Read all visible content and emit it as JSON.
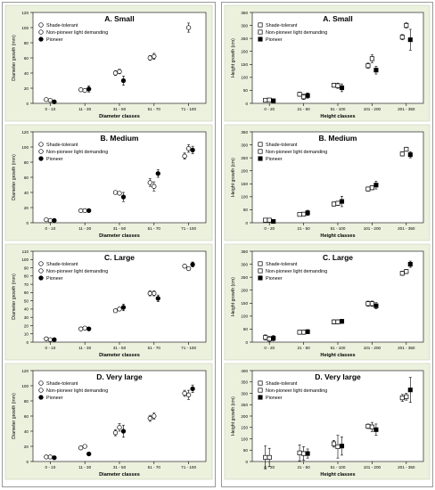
{
  "colors": {
    "panel_bg": "#ecf1de",
    "plot_bg": "#ffffff",
    "marker": "#000000",
    "hollow_fill": "#ffffff",
    "border": "#9a9a9a"
  },
  "chart_data": [
    {
      "type": "scatter",
      "title": "A. Small",
      "xlabel": "Diameter classes",
      "ylabel": "Diameter growth (mm)",
      "categories": [
        "0 - 10",
        "11 - 30",
        "31 - 50",
        "51 - 70",
        "71 - 100"
      ],
      "ylim": [
        0,
        120
      ],
      "yticks": [
        0,
        20,
        40,
        60,
        80,
        100,
        120
      ],
      "legend": "top-left",
      "grid": false,
      "series": [
        {
          "name": "Shade-tolerant",
          "marker": "circle-hollow",
          "values": [
            5,
            18,
            40,
            60,
            null
          ],
          "errors": [
            1,
            2,
            3,
            3,
            null
          ]
        },
        {
          "name": "Non-pioneer light demanding",
          "marker": "circle-hollow",
          "values": [
            4,
            17,
            42,
            62,
            100
          ],
          "errors": [
            1,
            2,
            3,
            4,
            6
          ]
        },
        {
          "name": "Pioneer",
          "marker": "circle-filled",
          "values": [
            2,
            19,
            30,
            null,
            null
          ],
          "errors": [
            1,
            4,
            6,
            null,
            null
          ]
        }
      ]
    },
    {
      "type": "scatter",
      "title": "B. Medium",
      "xlabel": "Diameter classes",
      "ylabel": "Diameter growth (mm)",
      "categories": [
        "0 - 10",
        "11 - 30",
        "31 - 50",
        "51 - 70",
        "71 - 100"
      ],
      "ylim": [
        0,
        120
      ],
      "yticks": [
        0,
        20,
        40,
        60,
        80,
        100,
        120
      ],
      "legend": "top-left",
      "grid": false,
      "series": [
        {
          "name": "Shade-tolerant",
          "marker": "circle-hollow",
          "values": [
            4,
            16,
            40,
            53,
            88
          ],
          "errors": [
            1,
            1,
            2,
            5,
            4
          ]
        },
        {
          "name": "Non-pioneer light demanding",
          "marker": "circle-hollow",
          "values": [
            3,
            16,
            39,
            48,
            98
          ],
          "errors": [
            1,
            1,
            2,
            6,
            5
          ]
        },
        {
          "name": "Pioneer",
          "marker": "circle-filled",
          "values": [
            3,
            16,
            34,
            65,
            96
          ],
          "errors": [
            1,
            1,
            6,
            5,
            5
          ]
        }
      ]
    },
    {
      "type": "scatter",
      "title": "C. Large",
      "xlabel": "Diameter classes",
      "ylabel": "Diameter growth (mm)",
      "categories": [
        "0 - 10",
        "11 - 30",
        "31 - 50",
        "51 - 70",
        "71 - 100"
      ],
      "ylim": [
        0,
        110
      ],
      "yticks": [
        0,
        10,
        20,
        30,
        40,
        50,
        60,
        70,
        80,
        90,
        100,
        110
      ],
      "legend": "top-left",
      "grid": false,
      "series": [
        {
          "name": "Shade-tolerant",
          "marker": "circle-hollow",
          "values": [
            4,
            16,
            38,
            59,
            92
          ],
          "errors": [
            1,
            1,
            2,
            3,
            2
          ]
        },
        {
          "name": "Non-pioneer light demanding",
          "marker": "circle-hollow",
          "values": [
            3,
            17,
            40,
            59,
            89
          ],
          "errors": [
            1,
            1,
            2,
            3,
            2
          ]
        },
        {
          "name": "Pioneer",
          "marker": "circle-filled",
          "values": [
            3,
            16,
            42,
            53,
            94
          ],
          "errors": [
            1,
            1,
            4,
            4,
            3
          ]
        }
      ]
    },
    {
      "type": "scatter",
      "title": "D. Very large",
      "xlabel": "Diameter classes",
      "ylabel": "Diameter growth (mm)",
      "categories": [
        "0 - 10",
        "11 - 30",
        "31 - 50",
        "51 - 70",
        "71 - 100"
      ],
      "ylim": [
        0,
        120
      ],
      "yticks": [
        0,
        20,
        40,
        60,
        80,
        100,
        120
      ],
      "legend": "top-left",
      "grid": false,
      "series": [
        {
          "name": "Shade-tolerant",
          "marker": "circle-hollow",
          "values": [
            6,
            18,
            38,
            57,
            90
          ],
          "errors": [
            1,
            1,
            4,
            4,
            4
          ]
        },
        {
          "name": "Non-pioneer light demanding",
          "marker": "circle-hollow",
          "values": [
            6,
            20,
            45,
            60,
            88
          ],
          "errors": [
            1,
            1,
            5,
            4,
            6
          ]
        },
        {
          "name": "Pioneer",
          "marker": "circle-filled",
          "values": [
            5,
            10,
            40,
            null,
            96
          ],
          "errors": [
            1,
            2,
            8,
            null,
            5
          ]
        }
      ]
    },
    {
      "type": "scatter",
      "title": "A. Small",
      "xlabel": "Height classes",
      "ylabel": "Height growth (cm)",
      "categories": [
        "0 - 20",
        "21 - 50",
        "51 - 100",
        "101 - 200",
        "201 - 350"
      ],
      "ylim": [
        0,
        350
      ],
      "yticks": [
        0,
        50,
        100,
        150,
        200,
        250,
        300,
        350
      ],
      "legend": "top-left",
      "grid": false,
      "series": [
        {
          "name": "Shade-tolerant",
          "marker": "square-hollow",
          "values": [
            12,
            35,
            70,
            145,
            255
          ],
          "errors": [
            4,
            8,
            8,
            10,
            10
          ]
        },
        {
          "name": "Non-pioneer light demanding",
          "marker": "square-hollow",
          "values": [
            13,
            25,
            68,
            172,
            300
          ],
          "errors": [
            4,
            10,
            10,
            15,
            10
          ]
        },
        {
          "name": "Pioneer",
          "marker": "square-filled",
          "values": [
            10,
            30,
            60,
            128,
            245
          ],
          "errors": [
            5,
            10,
            15,
            15,
            40
          ]
        }
      ]
    },
    {
      "type": "scatter",
      "title": "B. Medium",
      "xlabel": "Height classes",
      "ylabel": "Height growth (cm)",
      "categories": [
        "0 - 20",
        "21 - 50",
        "51 - 100",
        "101 - 200",
        "201 - 350"
      ],
      "ylim": [
        0,
        350
      ],
      "yticks": [
        0,
        50,
        100,
        150,
        200,
        250,
        300,
        350
      ],
      "legend": "top-left",
      "grid": false,
      "series": [
        {
          "name": "Shade-tolerant",
          "marker": "square-hollow",
          "values": [
            10,
            32,
            72,
            130,
            265
          ],
          "errors": [
            3,
            5,
            8,
            8,
            8
          ]
        },
        {
          "name": "Non-pioneer light demanding",
          "marker": "square-hollow",
          "values": [
            10,
            33,
            75,
            135,
            283
          ],
          "errors": [
            3,
            5,
            8,
            8,
            8
          ]
        },
        {
          "name": "Pioneer",
          "marker": "square-filled",
          "values": [
            5,
            38,
            82,
            145,
            262
          ],
          "errors": [
            3,
            10,
            20,
            15,
            12
          ]
        }
      ]
    },
    {
      "type": "scatter",
      "title": "C. Large",
      "xlabel": "Height classes",
      "ylabel": "Height growth (cm)",
      "categories": [
        "0 - 20",
        "21 - 50",
        "51 - 100",
        "101 - 200",
        "201 - 350"
      ],
      "ylim": [
        0,
        350
      ],
      "yticks": [
        0,
        50,
        100,
        150,
        200,
        250,
        300,
        350
      ],
      "legend": "top-left",
      "grid": false,
      "series": [
        {
          "name": "Shade-tolerant",
          "marker": "square-hollow",
          "values": [
            18,
            38,
            78,
            148,
            265
          ],
          "errors": [
            10,
            8,
            8,
            10,
            8
          ]
        },
        {
          "name": "Non-pioneer light demanding",
          "marker": "square-hollow",
          "values": [
            12,
            38,
            78,
            148,
            272
          ],
          "errors": [
            10,
            8,
            8,
            10,
            8
          ]
        },
        {
          "name": "Pioneer",
          "marker": "square-filled",
          "values": [
            15,
            40,
            80,
            140,
            300
          ],
          "errors": [
            10,
            8,
            8,
            12,
            12
          ]
        }
      ]
    },
    {
      "type": "scatter",
      "title": "D. Very large",
      "xlabel": "Height classes",
      "ylabel": "Height growth (cm)",
      "categories": [
        "0 - 20",
        "21 - 50",
        "51 - 100",
        "101 - 200",
        "201 - 350"
      ],
      "ylim": [
        0,
        400
      ],
      "yticks": [
        0,
        50,
        100,
        150,
        200,
        250,
        300,
        350,
        400
      ],
      "legend": "top-left",
      "grid": false,
      "series": [
        {
          "name": "Shade-tolerant",
          "marker": "square-hollow",
          "values": [
            18,
            38,
            78,
            155,
            280
          ],
          "errors": [
            50,
            35,
            15,
            10,
            15
          ]
        },
        {
          "name": "Non-pioneer light demanding",
          "marker": "square-hollow",
          "values": [
            18,
            35,
            65,
            152,
            285
          ],
          "errors": [
            40,
            30,
            50,
            20,
            15
          ]
        },
        {
          "name": "Pioneer",
          "marker": "square-filled",
          "values": [
            null,
            35,
            68,
            140,
            315
          ],
          "errors": [
            null,
            20,
            40,
            25,
            55
          ]
        }
      ]
    }
  ]
}
